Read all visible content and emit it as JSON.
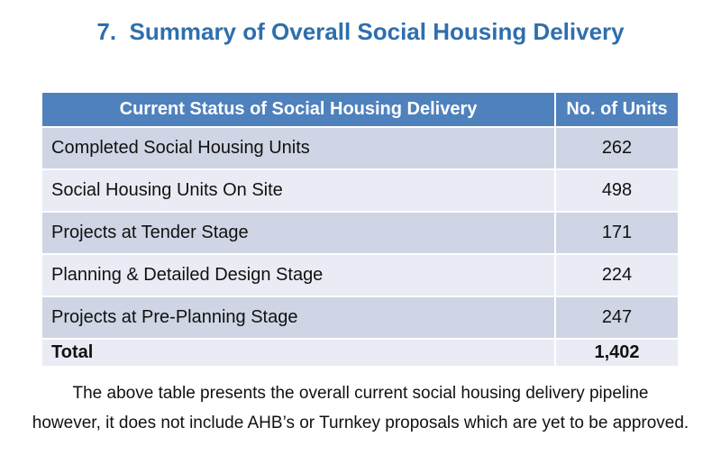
{
  "page": {
    "title": "7.  Summary of Overall Social Housing Delivery"
  },
  "table": {
    "headers": {
      "status": "Current Status of Social Housing Delivery",
      "units": "No. of Units"
    },
    "rows": [
      {
        "label": "Completed Social Housing Units",
        "value": "262"
      },
      {
        "label": "Social Housing Units On Site",
        "value": "498"
      },
      {
        "label": "Projects at Tender Stage",
        "value": "171"
      },
      {
        "label": "Planning & Detailed Design Stage",
        "value": "224"
      },
      {
        "label": "Projects at Pre-Planning Stage",
        "value": "247"
      }
    ],
    "total": {
      "label": "Total",
      "value": "1,402"
    }
  },
  "footnote": {
    "line1": "The above table presents the overall current social housing delivery pipeline",
    "line2": "however, it does not include AHB’s or Turnkey proposals which are yet to be approved."
  },
  "colors": {
    "heading_blue": "#2e6fad",
    "table_header_bg": "#4f81bd",
    "table_header_text": "#ffffff",
    "row_band_dark": "#cfd5e4",
    "row_band_light": "#e9ecf4",
    "body_text": "#111111"
  }
}
